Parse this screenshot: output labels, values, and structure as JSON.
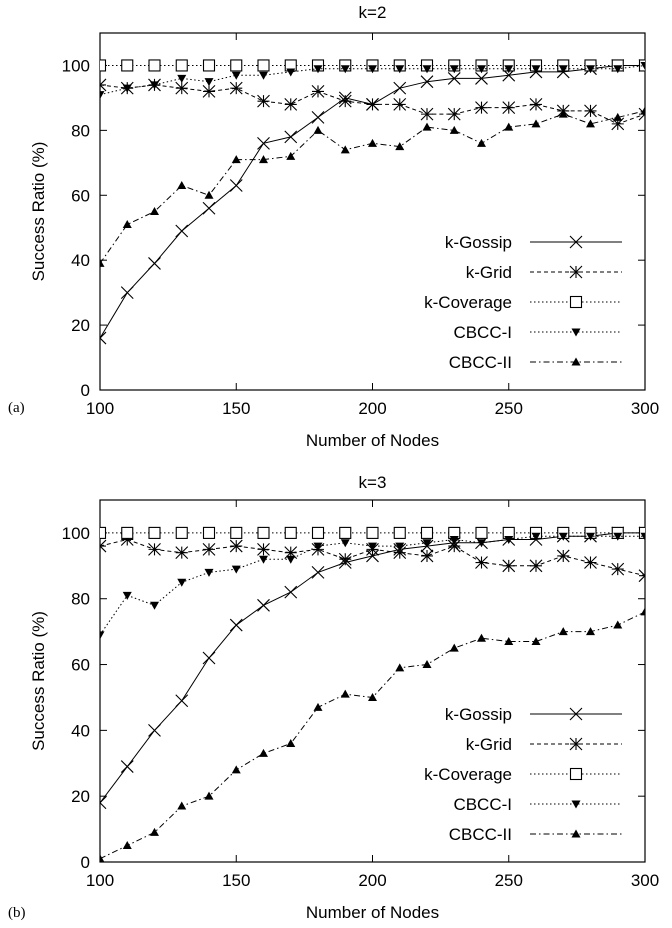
{
  "chart_data": [
    {
      "type": "line",
      "panel_label": "(a)",
      "title": "k=2",
      "xlabel": "Number of Nodes",
      "ylabel": "Success Ratio (%)",
      "xlim": [
        100,
        300
      ],
      "ylim": [
        0,
        110
      ],
      "xticks": [
        100,
        150,
        200,
        250,
        300
      ],
      "yticks": [
        0,
        20,
        40,
        60,
        80,
        100
      ],
      "grid": false,
      "legend_position": "bottom-right",
      "x": [
        100,
        110,
        120,
        130,
        140,
        150,
        160,
        170,
        180,
        190,
        200,
        210,
        220,
        230,
        240,
        250,
        260,
        270,
        280,
        290,
        300
      ],
      "series": [
        {
          "name": "k-Gossip",
          "marker": "x",
          "dash": "",
          "values": [
            16,
            30,
            39,
            49,
            56,
            63,
            76,
            78,
            84,
            90,
            88,
            93,
            95,
            96,
            96,
            97,
            98,
            98,
            99,
            100,
            100
          ]
        },
        {
          "name": "k-Grid",
          "marker": "asterisk",
          "dash": "4 3",
          "values": [
            94,
            93,
            94,
            93,
            92,
            93,
            89,
            88,
            92,
            89,
            88,
            88,
            85,
            85,
            87,
            87,
            88,
            86,
            86,
            82,
            85
          ]
        },
        {
          "name": "k-Coverage",
          "marker": "square",
          "dash": "1.5 2.5",
          "values": [
            100,
            100,
            100,
            100,
            100,
            100,
            100,
            100,
            100,
            100,
            100,
            100,
            100,
            100,
            100,
            100,
            100,
            100,
            100,
            100,
            100
          ]
        },
        {
          "name": "CBCC-I",
          "marker": "tri-down",
          "dash": "1.5 2.5",
          "values": [
            91,
            93,
            94,
            96,
            95,
            97,
            97,
            98,
            99,
            99,
            99,
            99,
            99,
            99,
            99,
            99,
            99,
            99,
            99,
            99,
            100
          ]
        },
        {
          "name": "CBCC-II",
          "marker": "tri-up",
          "dash": "6 3 1.5 3",
          "values": [
            39,
            51,
            55,
            63,
            60,
            71,
            71,
            72,
            80,
            74,
            76,
            75,
            81,
            80,
            76,
            81,
            82,
            85,
            82,
            84,
            86
          ]
        }
      ]
    },
    {
      "type": "line",
      "panel_label": "(b)",
      "title": "k=3",
      "xlabel": "Number of Nodes",
      "ylabel": "Success Ratio (%)",
      "xlim": [
        100,
        300
      ],
      "ylim": [
        0,
        110
      ],
      "xticks": [
        100,
        150,
        200,
        250,
        300
      ],
      "yticks": [
        0,
        20,
        40,
        60,
        80,
        100
      ],
      "grid": false,
      "legend_position": "bottom-right",
      "x": [
        100,
        110,
        120,
        130,
        140,
        150,
        160,
        170,
        180,
        190,
        200,
        210,
        220,
        230,
        240,
        250,
        260,
        270,
        280,
        290,
        300
      ],
      "series": [
        {
          "name": "k-Gossip",
          "marker": "x",
          "dash": "",
          "values": [
            18,
            29,
            40,
            49,
            62,
            72,
            78,
            82,
            88,
            91,
            93,
            95,
            96,
            97,
            97,
            98,
            98,
            99,
            99,
            100,
            100
          ]
        },
        {
          "name": "k-Grid",
          "marker": "asterisk",
          "dash": "4 3",
          "values": [
            96,
            98,
            95,
            94,
            95,
            96,
            95,
            94,
            95,
            92,
            95,
            94,
            93,
            96,
            91,
            90,
            90,
            93,
            91,
            89,
            87
          ]
        },
        {
          "name": "k-Coverage",
          "marker": "square",
          "dash": "1.5 2.5",
          "values": [
            100,
            100,
            100,
            100,
            100,
            100,
            100,
            100,
            100,
            100,
            100,
            100,
            100,
            100,
            100,
            100,
            100,
            100,
            100,
            100,
            100
          ]
        },
        {
          "name": "CBCC-I",
          "marker": "tri-down",
          "dash": "1.5 2.5",
          "values": [
            69,
            81,
            78,
            85,
            88,
            89,
            92,
            92,
            96,
            97,
            96,
            96,
            97,
            98,
            97,
            98,
            99,
            99,
            99,
            99,
            99
          ]
        },
        {
          "name": "CBCC-II",
          "marker": "tri-up",
          "dash": "6 3 1.5 3",
          "values": [
            1,
            5,
            9,
            17,
            20,
            28,
            33,
            36,
            47,
            51,
            50,
            59,
            60,
            65,
            68,
            67,
            67,
            70,
            70,
            72,
            76
          ]
        }
      ]
    }
  ]
}
